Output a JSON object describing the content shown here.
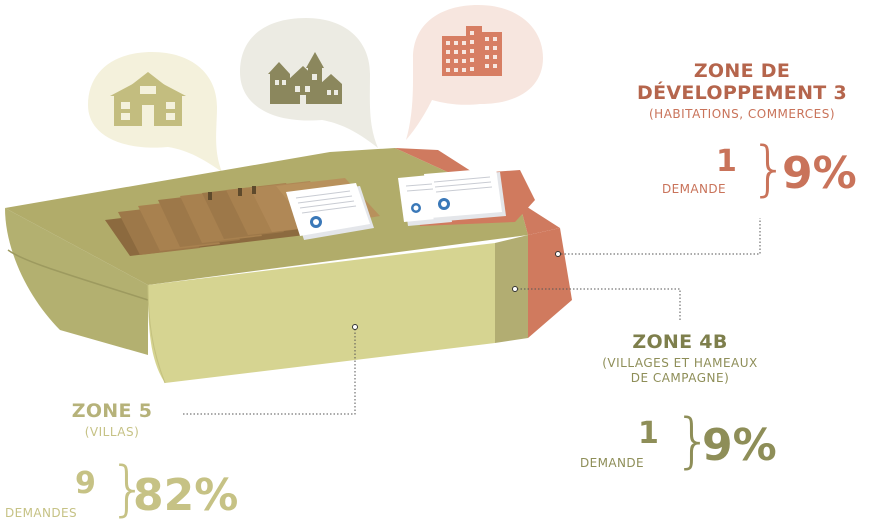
{
  "zones": [
    {
      "id": "zone-3",
      "name_lines": [
        "ZONE DE",
        "DÉVELOPPEMENT 3"
      ],
      "subtitle_lines": [
        "(HABITATIONS, COMMERCES)"
      ],
      "count": "1",
      "count_label": "DEMANDE",
      "percent": "9%",
      "percent_value": 9,
      "color": "#c9735a"
    },
    {
      "id": "zone-4b",
      "name_lines": [
        "ZONE 4B"
      ],
      "subtitle_lines": [
        "(VILLAGES ET HAMEAUX",
        "DE CAMPAGNE)"
      ],
      "count": "1",
      "count_label": "DEMANDE",
      "percent": "9%",
      "percent_value": 9,
      "color": "#8e8e58"
    },
    {
      "id": "zone-5",
      "name_lines": [
        "ZONE 5"
      ],
      "subtitle_lines": [
        "(VILLAS)"
      ],
      "count": "9",
      "count_label": "DEMANDES",
      "percent": "82%",
      "percent_value": 82,
      "color": "#c6c285"
    }
  ],
  "icons": [
    "villa-house-icon",
    "village-houses-icon",
    "apartment-building-icon",
    "document-files-icon",
    "folder-tabs-icon"
  ],
  "colors": {
    "tray_top": "#b1ac6a",
    "tray_front": "#d6d491",
    "tray_left": "#b3b070",
    "zone4b_face": "#b2ad72",
    "zone3_face": "#d07a5e",
    "bubble_villa": "#f4f1dc",
    "bubble_village": "#ecebe3",
    "bubble_building": "#f7e6df"
  }
}
